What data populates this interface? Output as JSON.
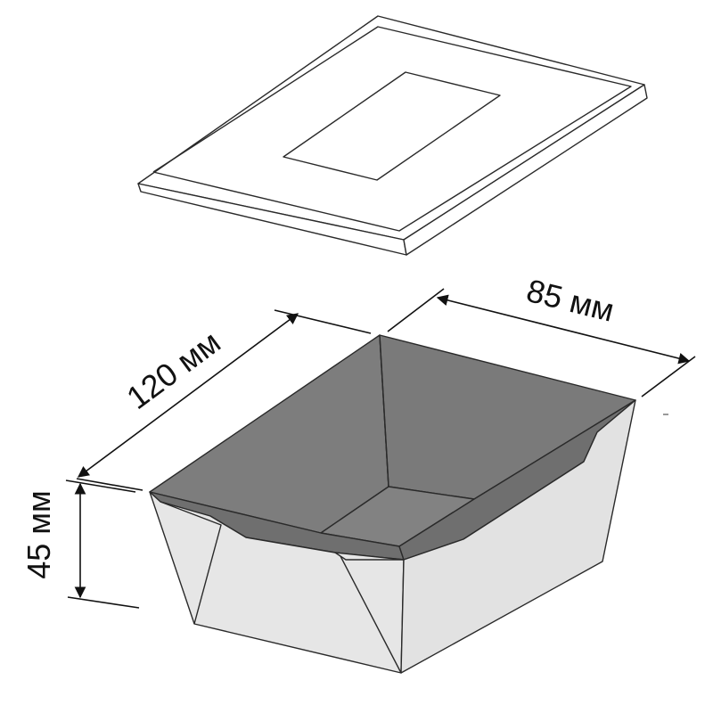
{
  "dimensions": {
    "length": "120 мм",
    "width": "85 мм",
    "height": "45 мм"
  },
  "colors": {
    "outline": "#2a2a2a",
    "lid_fill": "#ffffff",
    "box_outer": "#e6e6e6",
    "box_inner": "#7a7a7a",
    "arrow": "#111111"
  }
}
